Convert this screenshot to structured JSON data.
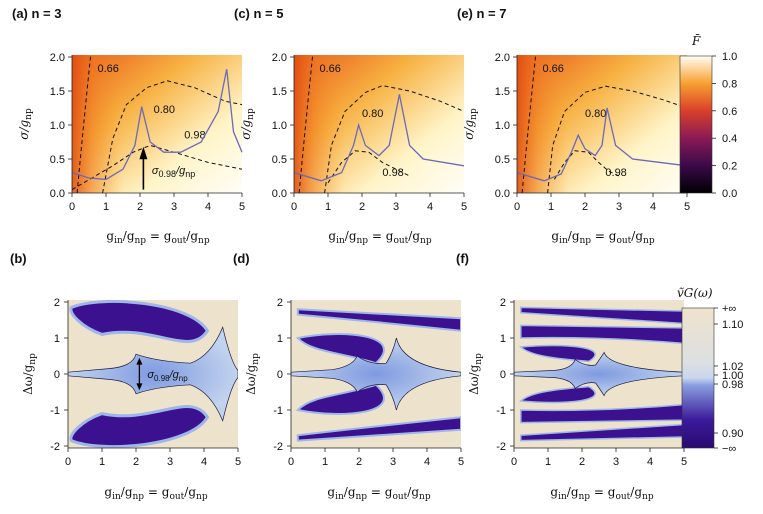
{
  "figure": {
    "panels_top": [
      {
        "label": "(a) n = 3",
        "xlabel": "g_in/g_np = g_out/g_np",
        "ylabel": "σ/g_np",
        "xticks": [
          "0",
          "1",
          "2",
          "3",
          "4",
          "5"
        ],
        "yticks": [
          "0.0",
          "0.5",
          "1.0",
          "1.5",
          "2.0"
        ],
        "contours": [
          "0.66",
          "0.80",
          "0.98"
        ],
        "annotation": "σ0.98/g_np"
      },
      {
        "label": "(c) n = 5",
        "xlabel": "g_in/g_np = g_out/g_np",
        "ylabel": "σ/g_np",
        "xticks": [
          "0",
          "1",
          "2",
          "3",
          "4",
          "5"
        ],
        "yticks": [
          "0.0",
          "0.5",
          "1.0",
          "1.5",
          "2.0"
        ],
        "contours": [
          "0.66",
          "0.80",
          "0.98"
        ]
      },
      {
        "label": "(e) n = 7",
        "xlabel": "g_in/g_np = g_out/g_np",
        "ylabel": "σ/g_np",
        "xticks": [
          "0",
          "1",
          "2",
          "3",
          "4",
          "5"
        ],
        "yticks": [
          "0.0",
          "0.5",
          "1.0",
          "1.5",
          "2.0"
        ],
        "contours": [
          "0.66",
          "0.80",
          "0.98"
        ]
      }
    ],
    "panels_bottom": [
      {
        "label": "(b)",
        "xlabel": "g_in/g_np = g_out/g_np",
        "ylabel": "Δω/g_np",
        "xticks": [
          "0",
          "1",
          "2",
          "3",
          "4",
          "5"
        ],
        "yticks": [
          "-2",
          "-1",
          "0",
          "1",
          "2"
        ],
        "annotation": "σ0.98/g_np"
      },
      {
        "label": "(d)",
        "xlabel": "g_in/g_np = g_out/g_np",
        "ylabel": "Δω/g_np",
        "xticks": [
          "0",
          "1",
          "2",
          "3",
          "4",
          "5"
        ],
        "yticks": [
          "-2",
          "-1",
          "0",
          "1",
          "2"
        ]
      },
      {
        "label": "(f)",
        "xlabel": "g_in/g_np = g_out/g_np",
        "ylabel": "Δω/g_np",
        "xticks": [
          "0",
          "1",
          "2",
          "3",
          "4",
          "5"
        ],
        "yticks": [
          "-2",
          "-1",
          "0",
          "1",
          "2"
        ]
      }
    ],
    "colorbar_top": {
      "title": "F̄",
      "ticks": [
        "1.0",
        "0.8",
        "0.6",
        "0.4",
        "0.2",
        "0.0"
      ]
    },
    "colorbar_bottom": {
      "title": "ṽG(ω)",
      "ticks": [
        "+∞",
        "1.10",
        "1.02",
        "1.00",
        "0.98",
        "0.90",
        "−∞"
      ]
    },
    "colors": {
      "fid_low": "#000000",
      "fid_mid": "#e8501a",
      "fid_high": "#fffdf0",
      "group_base": "#ede2cc",
      "group_low": "#3b0f8c",
      "group_mid": "#b7c9ea"
    }
  }
}
